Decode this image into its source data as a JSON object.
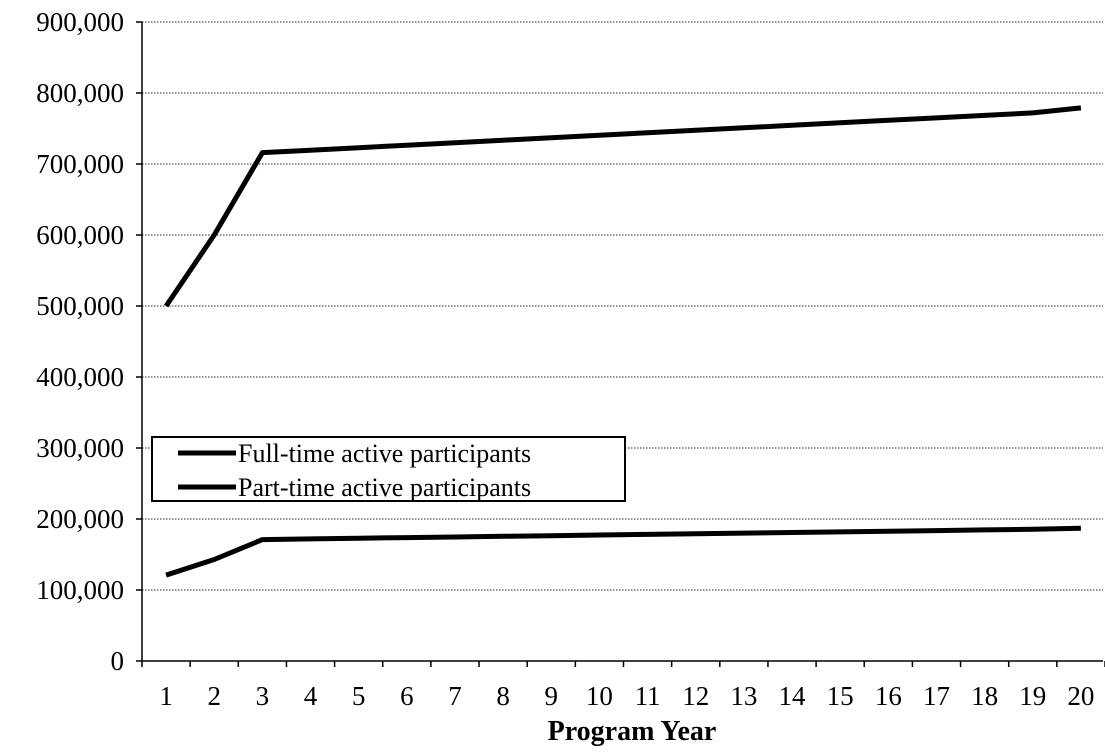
{
  "chart_data": {
    "type": "line",
    "xlabel": "Program Year",
    "ylabel": "",
    "categories": [
      "1",
      "2",
      "3",
      "4",
      "5",
      "6",
      "7",
      "8",
      "9",
      "10",
      "11",
      "12",
      "13",
      "14",
      "15",
      "16",
      "17",
      "18",
      "19",
      "20"
    ],
    "ylim": [
      0,
      900000
    ],
    "yticks": [
      "0",
      "100,000",
      "200,000",
      "300,000",
      "400,000",
      "500,000",
      "600,000",
      "700,000",
      "800,000",
      "900,000"
    ],
    "grid": true,
    "legend_position": "center-left",
    "series": [
      {
        "name": "Full-time active participants",
        "color": "#000000",
        "values": [
          500000,
          600000,
          716000,
          719500,
          723000,
          726500,
          730000,
          733500,
          737000,
          740500,
          744000,
          747500,
          751000,
          754500,
          758000,
          761500,
          765000,
          768500,
          772000,
          779000
        ]
      },
      {
        "name": "Part-time active participants",
        "color": "#000000",
        "values": [
          121000,
          143000,
          171000,
          172000,
          172900,
          173800,
          174700,
          175600,
          176500,
          177400,
          178300,
          179200,
          180100,
          181000,
          181900,
          182800,
          183700,
          184600,
          185500,
          187000
        ]
      }
    ]
  }
}
